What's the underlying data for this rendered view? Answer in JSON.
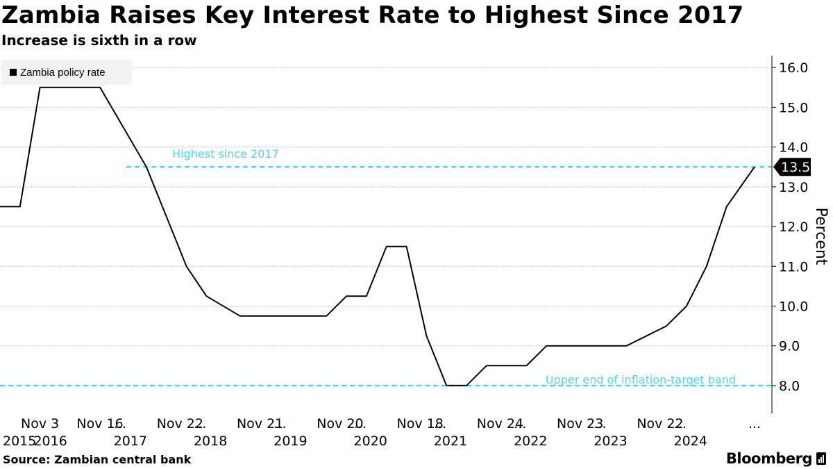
{
  "title": "Zambia Raises Key Interest Rate to Highest Since 2017",
  "subtitle": "Increase is sixth in a row",
  "source": "Source:  Zambian central bank",
  "brand": "Bloomberg",
  "colors": {
    "line": "#000000",
    "annotation": "#4dd8e0",
    "grid": "#bbbbbb",
    "callout_bg": "#000000"
  },
  "chart_data": {
    "type": "line",
    "title": "Zambia Raises Key Interest Rate to Highest Since 2017",
    "ylabel": "Percent",
    "ylim": [
      7.3,
      16.3
    ],
    "yticks": [
      "16.0",
      "15.0",
      "14.0",
      "13.0",
      "12.0",
      "11.0",
      "10.0",
      "9.0",
      "8.0"
    ],
    "ytick_values": [
      16,
      15,
      14,
      13,
      12,
      11,
      10,
      9,
      8
    ],
    "series": [
      {
        "name": "Zambia policy rate",
        "points": [
          [
            2015.42,
            12.5
          ],
          [
            2015.67,
            12.5
          ],
          [
            2015.92,
            15.5
          ],
          [
            2016.2,
            15.5
          ],
          [
            2016.67,
            15.5
          ],
          [
            2017.25,
            13.5
          ],
          [
            2017.75,
            11.0
          ],
          [
            2018.0,
            10.25
          ],
          [
            2018.42,
            9.75
          ],
          [
            2019.5,
            9.75
          ],
          [
            2019.75,
            10.25
          ],
          [
            2020.0,
            10.25
          ],
          [
            2020.25,
            11.5
          ],
          [
            2020.5,
            11.5
          ],
          [
            2020.75,
            9.25
          ],
          [
            2021.0,
            8.0
          ],
          [
            2021.25,
            8.0
          ],
          [
            2021.5,
            8.5
          ],
          [
            2022.0,
            8.5
          ],
          [
            2022.25,
            9.0
          ],
          [
            2023.25,
            9.0
          ],
          [
            2023.75,
            9.5
          ],
          [
            2024.0,
            10.0
          ],
          [
            2024.25,
            11.0
          ],
          [
            2024.5,
            12.5
          ],
          [
            2024.85,
            13.5
          ]
        ]
      }
    ],
    "xlim": [
      2015.42,
      2024.85
    ],
    "x_month_labels": [
      {
        "x": 2015.92,
        "label": "Nov 3"
      },
      {
        "x": 2016.67,
        "label": "Nov 16"
      },
      {
        "x": 2016.92,
        "label": "..."
      },
      {
        "x": 2017.67,
        "label": "Nov 22"
      },
      {
        "x": 2017.92,
        "label": "..."
      },
      {
        "x": 2018.67,
        "label": "Nov 21"
      },
      {
        "x": 2018.92,
        "label": "..."
      },
      {
        "x": 2019.67,
        "label": "Nov 20"
      },
      {
        "x": 2019.92,
        "label": "..."
      },
      {
        "x": 2020.67,
        "label": "Nov 18"
      },
      {
        "x": 2020.92,
        "label": "..."
      },
      {
        "x": 2021.67,
        "label": "Nov 24"
      },
      {
        "x": 2021.92,
        "label": "..."
      },
      {
        "x": 2022.67,
        "label": "Nov 23"
      },
      {
        "x": 2022.92,
        "label": "..."
      },
      {
        "x": 2023.67,
        "label": "Nov 22"
      },
      {
        "x": 2023.92,
        "label": "..."
      }
    ],
    "x_year_labels": [
      {
        "x": 2015.42,
        "label": "2015"
      },
      {
        "x": 2016.05,
        "label": "2016"
      },
      {
        "x": 2017.05,
        "label": "2017"
      },
      {
        "x": 2018.05,
        "label": "2018"
      },
      {
        "x": 2019.05,
        "label": "2019"
      },
      {
        "x": 2020.05,
        "label": "2020"
      },
      {
        "x": 2021.05,
        "label": "2021"
      },
      {
        "x": 2022.05,
        "label": "2022"
      },
      {
        "x": 2023.05,
        "label": "2023"
      },
      {
        "x": 2024.05,
        "label": "2024"
      }
    ],
    "reference_lines": [
      {
        "y": 13.5,
        "x_start": 2017.0,
        "label": "Highest since 2017"
      },
      {
        "y": 8.0,
        "x_start": 2015.42,
        "label": "Upper end of inflation-target band"
      }
    ],
    "last_value_label": "13.5",
    "legend": "top-left",
    "grid": true
  }
}
